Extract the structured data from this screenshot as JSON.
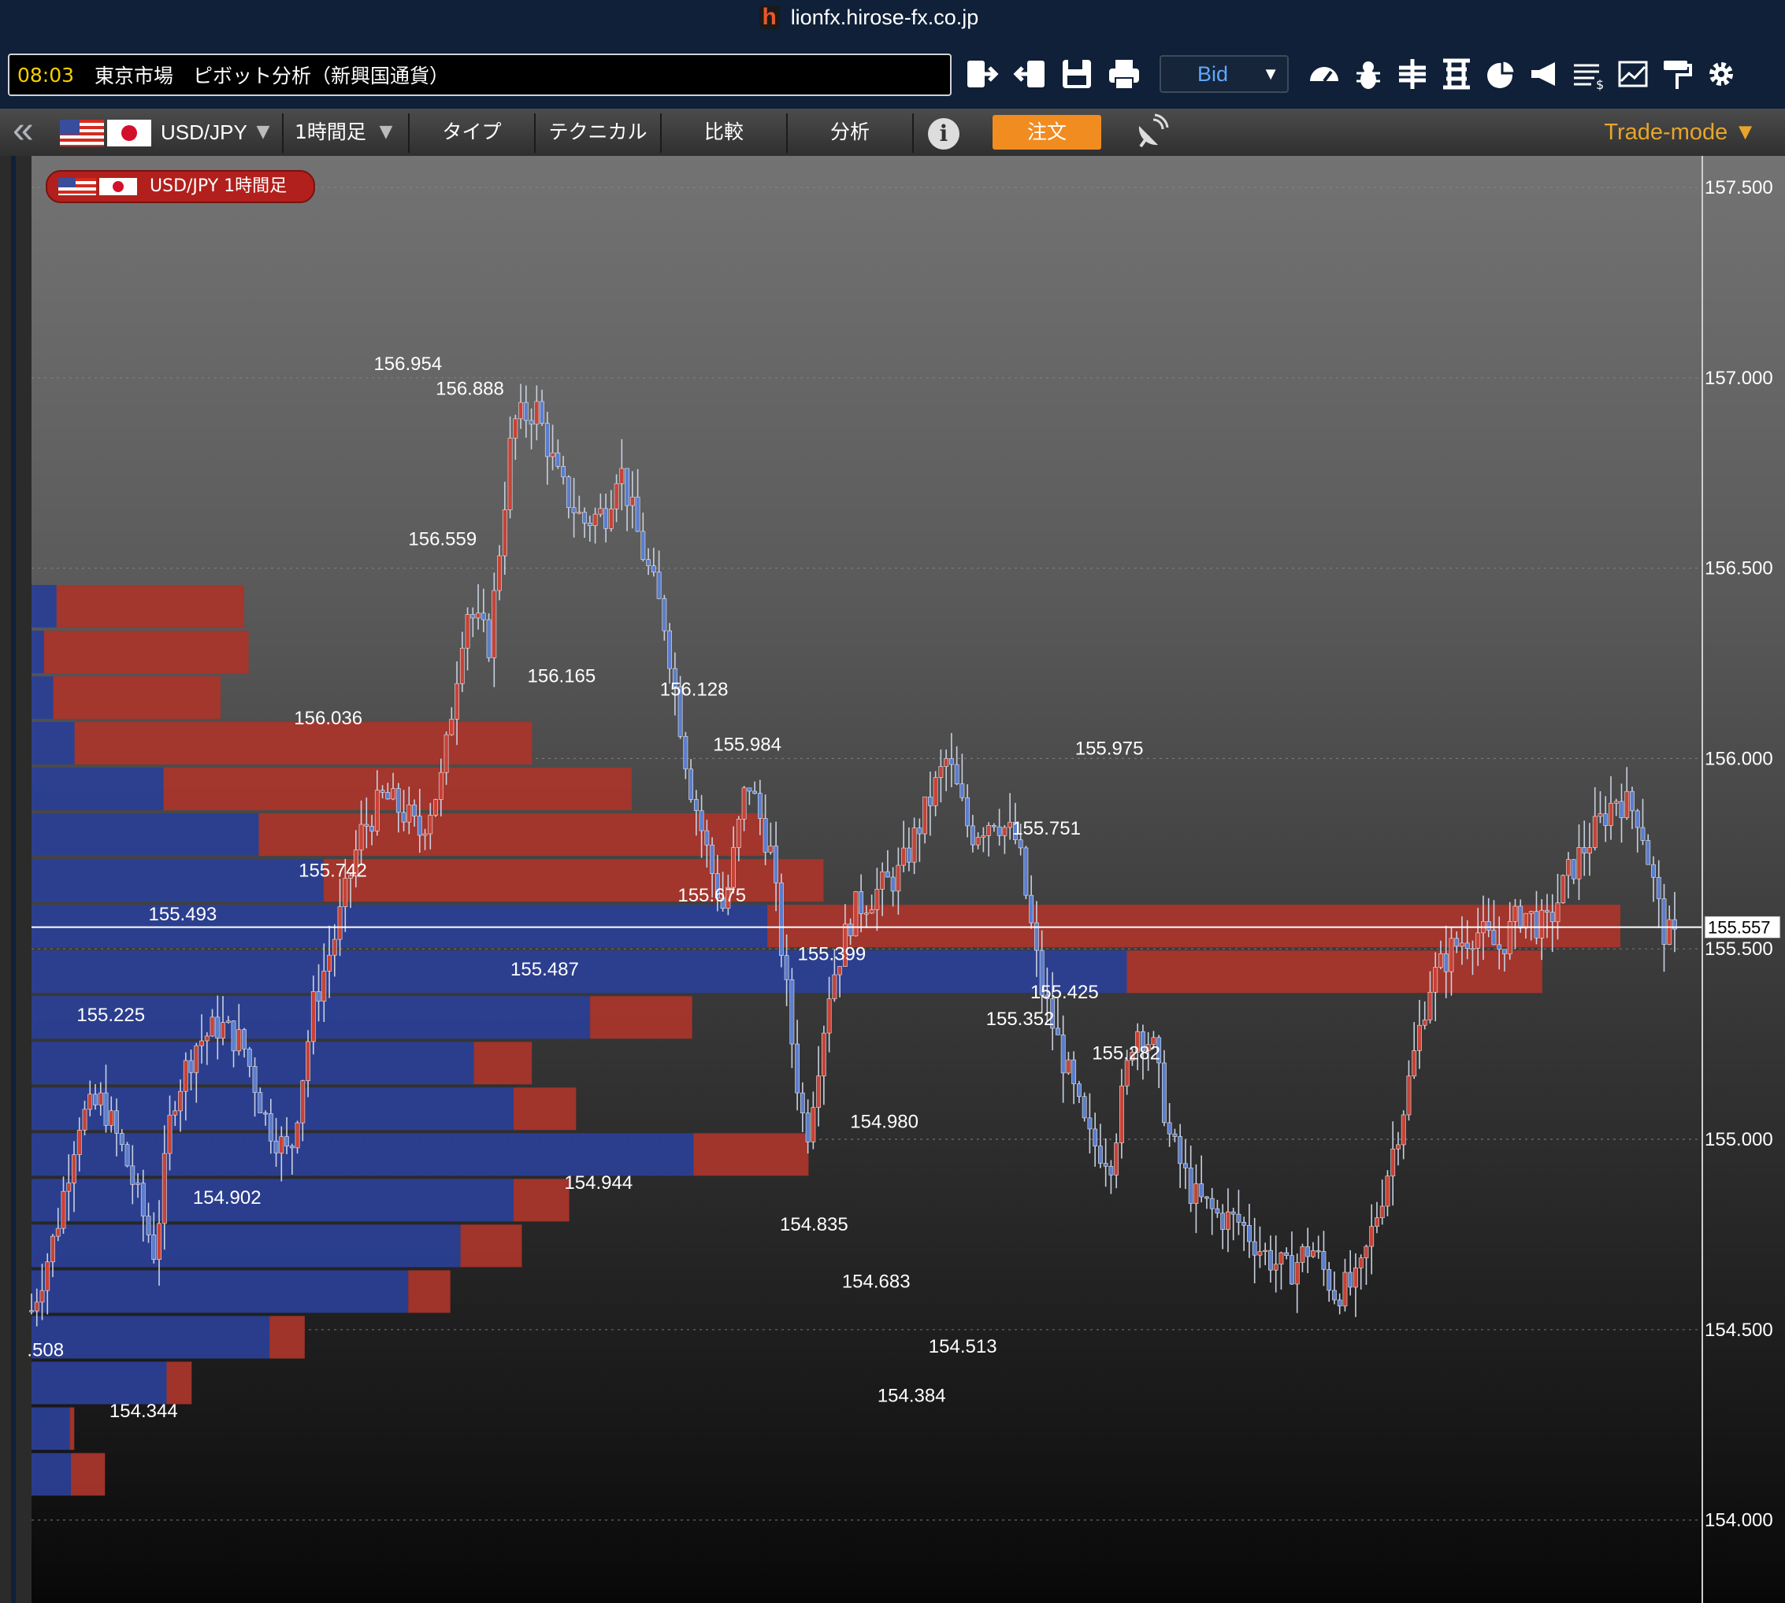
{
  "window": {
    "url": "lionfx.hirose-fx.co.jp",
    "logo_letter": "h"
  },
  "topbar": {
    "time": "08:03",
    "info_text": "東京市場　ピボット分析（新興国通貨）",
    "price_type_selected": "Bid",
    "icons": [
      "login-icon",
      "logout-icon",
      "save-icon",
      "print-icon",
      "speedometer-icon",
      "bug-icon",
      "grid-cross-icon",
      "grid-h-icon",
      "pie-icon",
      "megaphone-icon",
      "money-icon",
      "chart-icon",
      "paint-roller-icon",
      "gear-icon"
    ]
  },
  "nav": {
    "symbol": "USD/JPY",
    "timeframe": "1時間足",
    "type_label": "タイプ",
    "technical_label": "テクニカル",
    "compare_label": "比較",
    "analysis_label": "分析",
    "info_symbol": "i",
    "order_label": "注文",
    "trade_mode_label": "Trade-mode ▼"
  },
  "chart_data": {
    "type": "candlestick",
    "title": "USD/JPY 1時間足",
    "ylim": [
      153.85,
      157.65
    ],
    "y_ticks": [
      "157.500",
      "157.000",
      "156.500",
      "156.000",
      "155.500",
      "155.000",
      "154.500",
      "154.000"
    ],
    "current_price": "155.557",
    "colors": {
      "up": "#c64237",
      "down": "#5c7dcc",
      "sell_profile": "#a8352b",
      "buy_profile": "#2b3f94"
    },
    "candle_path": [
      {
        "x": 0.0,
        "y": 154.55
      },
      {
        "x": 0.02,
        "y": 154.75
      },
      {
        "x": 0.04,
        "y": 155.05
      },
      {
        "x": 0.06,
        "y": 155.1
      },
      {
        "x": 0.08,
        "y": 154.95
      },
      {
        "x": 0.105,
        "y": 154.7
      },
      {
        "x": 0.12,
        "y": 155.1
      },
      {
        "x": 0.14,
        "y": 155.25
      },
      {
        "x": 0.16,
        "y": 155.3
      },
      {
        "x": 0.18,
        "y": 155.25
      },
      {
        "x": 0.2,
        "y": 155.05
      },
      {
        "x": 0.22,
        "y": 154.95
      },
      {
        "x": 0.24,
        "y": 155.35
      },
      {
        "x": 0.26,
        "y": 155.55
      },
      {
        "x": 0.28,
        "y": 155.8
      },
      {
        "x": 0.3,
        "y": 155.9
      },
      {
        "x": 0.32,
        "y": 155.85
      },
      {
        "x": 0.33,
        "y": 155.8
      },
      {
        "x": 0.35,
        "y": 155.95
      },
      {
        "x": 0.37,
        "y": 156.4
      },
      {
        "x": 0.39,
        "y": 156.3
      },
      {
        "x": 0.41,
        "y": 156.88
      },
      {
        "x": 0.43,
        "y": 156.92
      },
      {
        "x": 0.45,
        "y": 156.72
      },
      {
        "x": 0.47,
        "y": 156.62
      },
      {
        "x": 0.49,
        "y": 156.65
      },
      {
        "x": 0.5,
        "y": 156.78
      },
      {
        "x": 0.52,
        "y": 156.55
      },
      {
        "x": 0.54,
        "y": 156.35
      },
      {
        "x": 0.56,
        "y": 155.95
      },
      {
        "x": 0.58,
        "y": 155.7
      },
      {
        "x": 0.59,
        "y": 155.6
      },
      {
        "x": 0.61,
        "y": 155.95
      },
      {
        "x": 0.63,
        "y": 155.75
      },
      {
        "x": 0.65,
        "y": 155.2
      },
      {
        "x": 0.66,
        "y": 155.0
      },
      {
        "x": 0.68,
        "y": 155.4
      },
      {
        "x": 0.7,
        "y": 155.6
      },
      {
        "x": 0.72,
        "y": 155.65
      },
      {
        "x": 0.74,
        "y": 155.7
      },
      {
        "x": 0.76,
        "y": 155.85
      },
      {
        "x": 0.78,
        "y": 156.0
      },
      {
        "x": 0.8,
        "y": 155.8
      },
      {
        "x": 0.82,
        "y": 155.85
      },
      {
        "x": 0.84,
        "y": 155.78
      },
      {
        "x": 0.86,
        "y": 155.4
      },
      {
        "x": 0.88,
        "y": 155.2
      },
      {
        "x": 0.9,
        "y": 155.0
      },
      {
        "x": 0.92,
        "y": 154.95
      },
      {
        "x": 0.94,
        "y": 155.3
      },
      {
        "x": 0.955,
        "y": 155.25
      },
      {
        "x": 0.97,
        "y": 155.0
      },
      {
        "x": 0.99,
        "y": 154.85
      },
      {
        "x": 1.01,
        "y": 154.8
      },
      {
        "x": 1.03,
        "y": 154.78
      },
      {
        "x": 1.05,
        "y": 154.7
      },
      {
        "x": 1.07,
        "y": 154.65
      },
      {
        "x": 1.09,
        "y": 154.72
      },
      {
        "x": 1.11,
        "y": 154.6
      },
      {
        "x": 1.13,
        "y": 154.62
      },
      {
        "x": 1.15,
        "y": 154.85
      },
      {
        "x": 1.17,
        "y": 155.1
      },
      {
        "x": 1.19,
        "y": 155.4
      },
      {
        "x": 1.21,
        "y": 155.5
      },
      {
        "x": 1.23,
        "y": 155.55
      },
      {
        "x": 1.25,
        "y": 155.5
      },
      {
        "x": 1.27,
        "y": 155.6
      },
      {
        "x": 1.29,
        "y": 155.55
      },
      {
        "x": 1.31,
        "y": 155.7
      },
      {
        "x": 1.33,
        "y": 155.8
      },
      {
        "x": 1.35,
        "y": 155.9
      },
      {
        "x": 1.37,
        "y": 155.85
      },
      {
        "x": 1.39,
        "y": 155.55
      },
      {
        "x": 1.4,
        "y": 155.52
      }
    ],
    "price_labels": [
      {
        "text": "156.954",
        "x": 0.3207,
        "y": 157.02
      },
      {
        "text": "156.888",
        "x": 0.3735,
        "y": 156.955
      },
      {
        "text": "156.559",
        "x": 0.3502,
        "y": 156.56
      },
      {
        "text": "156.165",
        "x": 0.4516,
        "y": 156.2
      },
      {
        "text": "156.128",
        "x": 0.5645,
        "y": 156.165
      },
      {
        "text": "155.984",
        "x": 0.6098,
        "y": 156.02
      },
      {
        "text": "156.036",
        "x": 0.2528,
        "y": 156.09
      },
      {
        "text": "155.742",
        "x": 0.2567,
        "y": 155.69
      },
      {
        "text": "155.675",
        "x": 0.5797,
        "y": 155.625
      },
      {
        "text": "155.493",
        "x": 0.1288,
        "y": 155.575
      },
      {
        "text": "155.487",
        "x": 0.4372,
        "y": 155.43
      },
      {
        "text": "155.399",
        "x": 0.6818,
        "y": 155.47
      },
      {
        "text": "155.975",
        "x": 0.9182,
        "y": 156.01
      },
      {
        "text": "155.751",
        "x": 0.8648,
        "y": 155.8
      },
      {
        "text": "155.425",
        "x": 0.8801,
        "y": 155.37
      },
      {
        "text": "155.352",
        "x": 0.8423,
        "y": 155.3
      },
      {
        "text": "155.282",
        "x": 0.9326,
        "y": 155.21
      },
      {
        "text": "155.225",
        "x": 0.0676,
        "y": 155.31
      },
      {
        "text": "154.980",
        "x": 0.7266,
        "y": 155.03
      },
      {
        "text": "154.944",
        "x": 0.4831,
        "y": 154.87
      },
      {
        "text": "154.902",
        "x": 0.1666,
        "y": 154.83
      },
      {
        "text": "154.835",
        "x": 0.6667,
        "y": 154.76
      },
      {
        "text": "154.683",
        "x": 0.7196,
        "y": 154.61
      },
      {
        "text": "154.513",
        "x": 0.7934,
        "y": 154.44
      },
      {
        "text": "154.384",
        "x": 0.7498,
        "y": 154.31
      },
      {
        "text": ".508",
        "x": 0.0119,
        "y": 154.43
      },
      {
        "text": "154.344",
        "x": 0.0955,
        "y": 154.27
      }
    ],
    "order_profile": [
      {
        "price_mid": 156.4,
        "buy": 0.015,
        "sell": 0.1123
      },
      {
        "price_mid": 156.28,
        "buy": 0.0075,
        "sell": 0.1225
      },
      {
        "price_mid": 156.16,
        "buy": 0.013,
        "sell": 0.1002
      },
      {
        "price_mid": 156.04,
        "buy": 0.0258,
        "sell": 0.2739
      },
      {
        "price_mid": 155.92,
        "buy": 0.0791,
        "sell": 0.2803
      },
      {
        "price_mid": 155.8,
        "buy": 0.1361,
        "sell": 0.3026
      },
      {
        "price_mid": 155.68,
        "buy": 0.1749,
        "sell": 0.2994
      },
      {
        "price_mid": 155.56,
        "buy": 0.4406,
        "sell": 0.5108
      },
      {
        "price_mid": 155.44,
        "buy": 0.6559,
        "sell": 0.2488
      },
      {
        "price_mid": 155.32,
        "buy": 0.3345,
        "sell": 0.0611
      },
      {
        "price_mid": 155.2,
        "buy": 0.2649,
        "sell": 0.0347
      },
      {
        "price_mid": 155.08,
        "buy": 0.2887,
        "sell": 0.0374
      },
      {
        "price_mid": 154.96,
        "buy": 0.3964,
        "sell": 0.0689
      },
      {
        "price_mid": 154.84,
        "buy": 0.2887,
        "sell": 0.0333
      },
      {
        "price_mid": 154.72,
        "buy": 0.2569,
        "sell": 0.0367
      },
      {
        "price_mid": 154.6,
        "buy": 0.2256,
        "sell": 0.0252
      },
      {
        "price_mid": 154.48,
        "buy": 0.1425,
        "sell": 0.0211
      },
      {
        "price_mid": 154.36,
        "buy": 0.0809,
        "sell": 0.015
      },
      {
        "price_mid": 154.24,
        "buy": 0.0229,
        "sell": 0.0027
      },
      {
        "price_mid": 154.12,
        "buy": 0.0236,
        "sell": 0.0204
      }
    ]
  }
}
